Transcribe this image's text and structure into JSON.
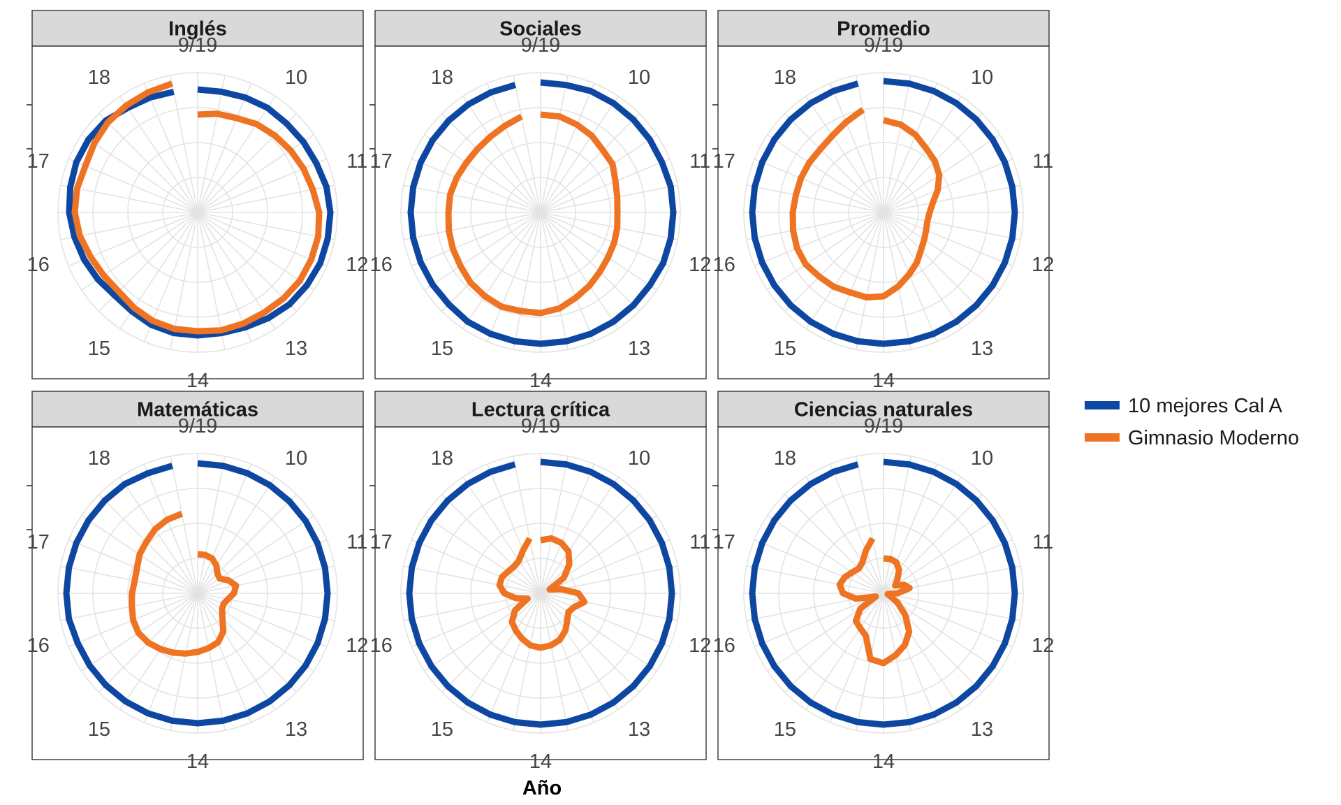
{
  "chart_data": {
    "type": "line",
    "coord": "polar",
    "xlabel": "Año",
    "x_labels": [
      "9/19",
      "10",
      "11",
      "12",
      "13",
      "14",
      "15",
      "16",
      "17",
      "18"
    ],
    "x_ticks": 32,
    "radial_max": 100,
    "legend": {
      "position": "right",
      "entries": [
        {
          "name": "10 mejores Cal A",
          "color": "#0d47a1"
        },
        {
          "name": "Gimnasio Moderno",
          "color": "#ee7322"
        }
      ]
    },
    "panels": [
      {
        "title": "Inglés",
        "series": [
          {
            "name": "10 mejores Cal A",
            "color": "#0d47a1",
            "values": [
              88,
              88,
              89,
              90,
              90,
              91,
              92,
              94,
              95,
              95,
              95,
              94,
              93,
              91,
              89,
              88,
              88,
              88,
              87,
              85,
              84,
              86,
              88,
              90,
              92,
              93,
              94,
              94,
              93,
              90,
              89,
              88
            ]
          },
          {
            "name": "Gimnasio Moderno",
            "color": "#ee7322",
            "values": [
              70,
              72,
              73,
              76,
              78,
              80,
              82,
              84,
              87,
              88,
              88,
              88,
              87,
              86,
              86,
              86,
              85,
              85,
              84,
              82,
              80,
              81,
              83,
              86,
              88,
              88,
              87,
              89,
              91,
              92,
              93,
              94
            ]
          }
        ]
      },
      {
        "title": "Sociales",
        "series": [
          {
            "name": "10 mejores Cal A",
            "color": "#0d47a1",
            "values": [
              93,
              93,
              94,
              94,
              94,
              94,
              94,
              95,
              95,
              95,
              95,
              94,
              94,
              94,
              94,
              94,
              94,
              94,
              94,
              94,
              93,
              93,
              93,
              93,
              93,
              93,
              93,
              93,
              93,
              93,
              93,
              93
            ]
          },
          {
            "name": "Gimnasio Moderno",
            "color": "#ee7322",
            "values": [
              70,
              70,
              68,
              66,
              63,
              62,
              58,
              56,
              55,
              56,
              57,
              58,
              60,
              63,
              66,
              70,
              72,
              72,
              73,
              72,
              71,
              69,
              68,
              67,
              66,
              66,
              65,
              64,
              64,
              65,
              67,
              70
            ]
          }
        ]
      },
      {
        "title": "Promedio",
        "series": [
          {
            "name": "10 mejores Cal A",
            "color": "#0d47a1",
            "values": [
              94,
              94,
              94,
              94,
              94,
              94,
              94,
              94,
              94,
              94,
              94,
              94,
              94,
              94,
              94,
              94,
              94,
              94,
              94,
              94,
              94,
              94,
              94,
              94,
              94,
              94,
              94,
              94,
              94,
              94,
              94,
              94
            ]
          },
          {
            "name": "Gimnasio Moderno",
            "color": "#ee7322",
            "values": [
              66,
              64,
              60,
              55,
              52,
              48,
              42,
              36,
              33,
              32,
              33,
              35,
              38,
              43,
              48,
              54,
              60,
              62,
              62,
              64,
              65,
              67,
              67,
              66,
              65,
              64,
              64,
              64,
              64,
              66,
              70,
              75
            ]
          }
        ]
      },
      {
        "title": "Matemáticas",
        "series": [
          {
            "name": "10 mejores Cal A",
            "color": "#0d47a1",
            "values": [
              93,
              93,
              93,
              93,
              93,
              93,
              93,
              93,
              93,
              93,
              93,
              93,
              93,
              93,
              93,
              93,
              93,
              93,
              93,
              93,
              93,
              93,
              93,
              94,
              94,
              94,
              94,
              94,
              94,
              94,
              93,
              93
            ]
          },
          {
            "name": "Gimnasio Moderno",
            "color": "#ee7322",
            "values": [
              28,
              28,
              27,
              24,
              20,
              19,
              24,
              28,
              26,
              22,
              20,
              21,
              25,
              33,
              38,
              40,
              42,
              44,
              46,
              48,
              50,
              51,
              50,
              48,
              47,
              46,
              47,
              50,
              52,
              55,
              57,
              58
            ]
          }
        ]
      },
      {
        "title": "Lectura crítica",
        "series": [
          {
            "name": "10 mejores Cal A",
            "color": "#0d47a1",
            "values": [
              94,
              94,
              94,
              94,
              94,
              94,
              94,
              94,
              94,
              94,
              94,
              94,
              94,
              94,
              94,
              94,
              94,
              94,
              94,
              94,
              94,
              94,
              94,
              94,
              94,
              94,
              94,
              94,
              94,
              94,
              94,
              94
            ]
          },
          {
            "name": "Gimnasio Moderno",
            "color": "#ee7322",
            "values": [
              38,
              40,
              39,
              36,
              29,
              20,
              7,
              15,
              27,
              32,
              26,
              24,
              27,
              32,
              36,
              38,
              39,
              38,
              35,
              32,
              29,
              22,
              10,
              18,
              26,
              30,
              30,
              28,
              27,
              28,
              33,
              40
            ]
          }
        ]
      },
      {
        "title": "Ciencias naturales",
        "series": [
          {
            "name": "10 mejores Cal A",
            "color": "#0d47a1",
            "values": [
              94,
              94,
              94,
              94,
              94,
              94,
              94,
              94,
              94,
              94,
              94,
              94,
              94,
              94,
              94,
              94,
              94,
              94,
              94,
              94,
              94,
              94,
              94,
              94,
              94,
              94,
              94,
              94,
              94,
              94,
              94,
              94
            ]
          },
          {
            "name": "Gimnasio Moderno",
            "color": "#ee7322",
            "values": [
              25,
              25,
              24,
              20,
              14,
              10,
              16,
              19,
              10,
              3,
              5,
              12,
              22,
              33,
              40,
              45,
              50,
              48,
              33,
              30,
              28,
              20,
              6,
              20,
              29,
              32,
              30,
              27,
              25,
              27,
              33,
              40
            ]
          }
        ]
      }
    ]
  }
}
